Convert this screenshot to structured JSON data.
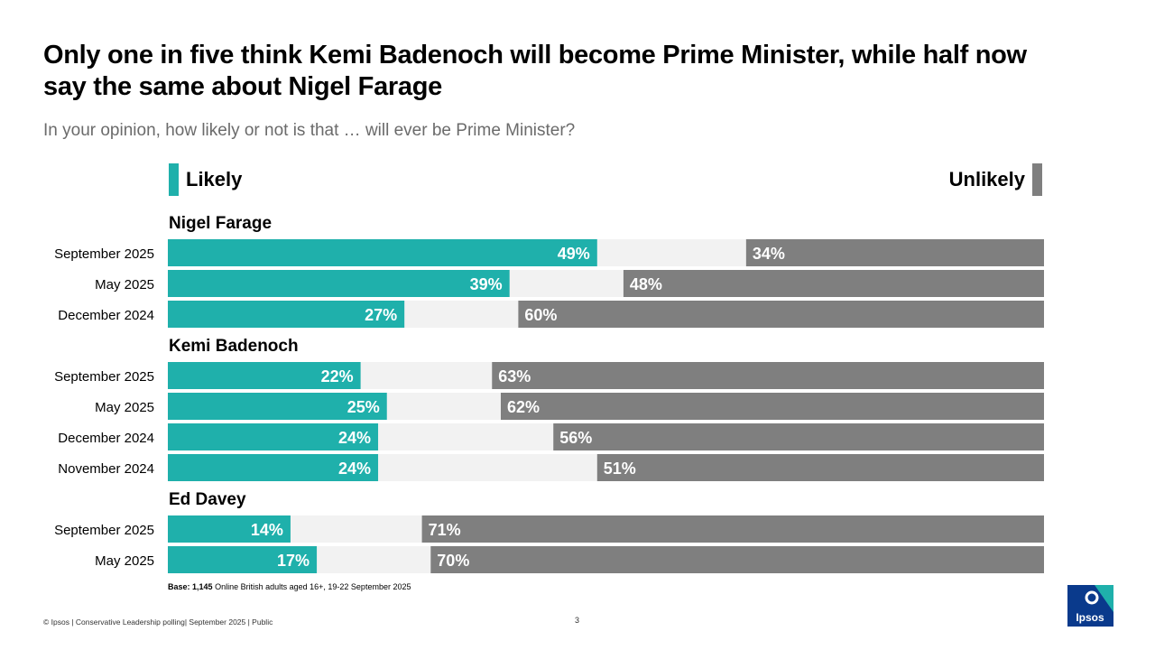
{
  "title": "Only one in five think Kemi Badenoch will become Prime Minister, while half now say the same about Nigel Farage",
  "subtitle": "In your opinion, how likely or not is that … will ever be Prime Minister?",
  "legend": {
    "likely": "Likely",
    "unlikely": "Unlikely"
  },
  "colors": {
    "likely": "#1fb0ab",
    "unlikely": "#7f7f7f",
    "middle": "#f2f2f2"
  },
  "chart_data": {
    "type": "bar",
    "orientation": "horizontal-diverging",
    "value_unit": "%",
    "xlim": [
      0,
      100
    ],
    "groups": [
      {
        "name": "Nigel Farage",
        "rows": [
          {
            "label": "September 2025",
            "likely": 49,
            "unlikely": 34
          },
          {
            "label": "May 2025",
            "likely": 39,
            "unlikely": 48
          },
          {
            "label": "December 2024",
            "likely": 27,
            "unlikely": 60
          }
        ]
      },
      {
        "name": "Kemi Badenoch",
        "rows": [
          {
            "label": "September 2025",
            "likely": 22,
            "unlikely": 63
          },
          {
            "label": "May 2025",
            "likely": 25,
            "unlikely": 62
          },
          {
            "label": "December 2024",
            "likely": 24,
            "unlikely": 56
          },
          {
            "label": "November 2024",
            "likely": 24,
            "unlikely": 51
          }
        ]
      },
      {
        "name": "Ed Davey",
        "rows": [
          {
            "label": "September 2025",
            "likely": 14,
            "unlikely": 71
          },
          {
            "label": "May 2025",
            "likely": 17,
            "unlikely": 70
          }
        ]
      }
    ]
  },
  "footnote": {
    "base_label": "Base:",
    "base_value": "1,145",
    "text": "Online British adults aged 16+,  19-22 September 2025"
  },
  "footer": "© Ipsos | Conservative Leadership polling| September 2025 | Public",
  "page_number": "3",
  "logo_text": "Ipsos"
}
